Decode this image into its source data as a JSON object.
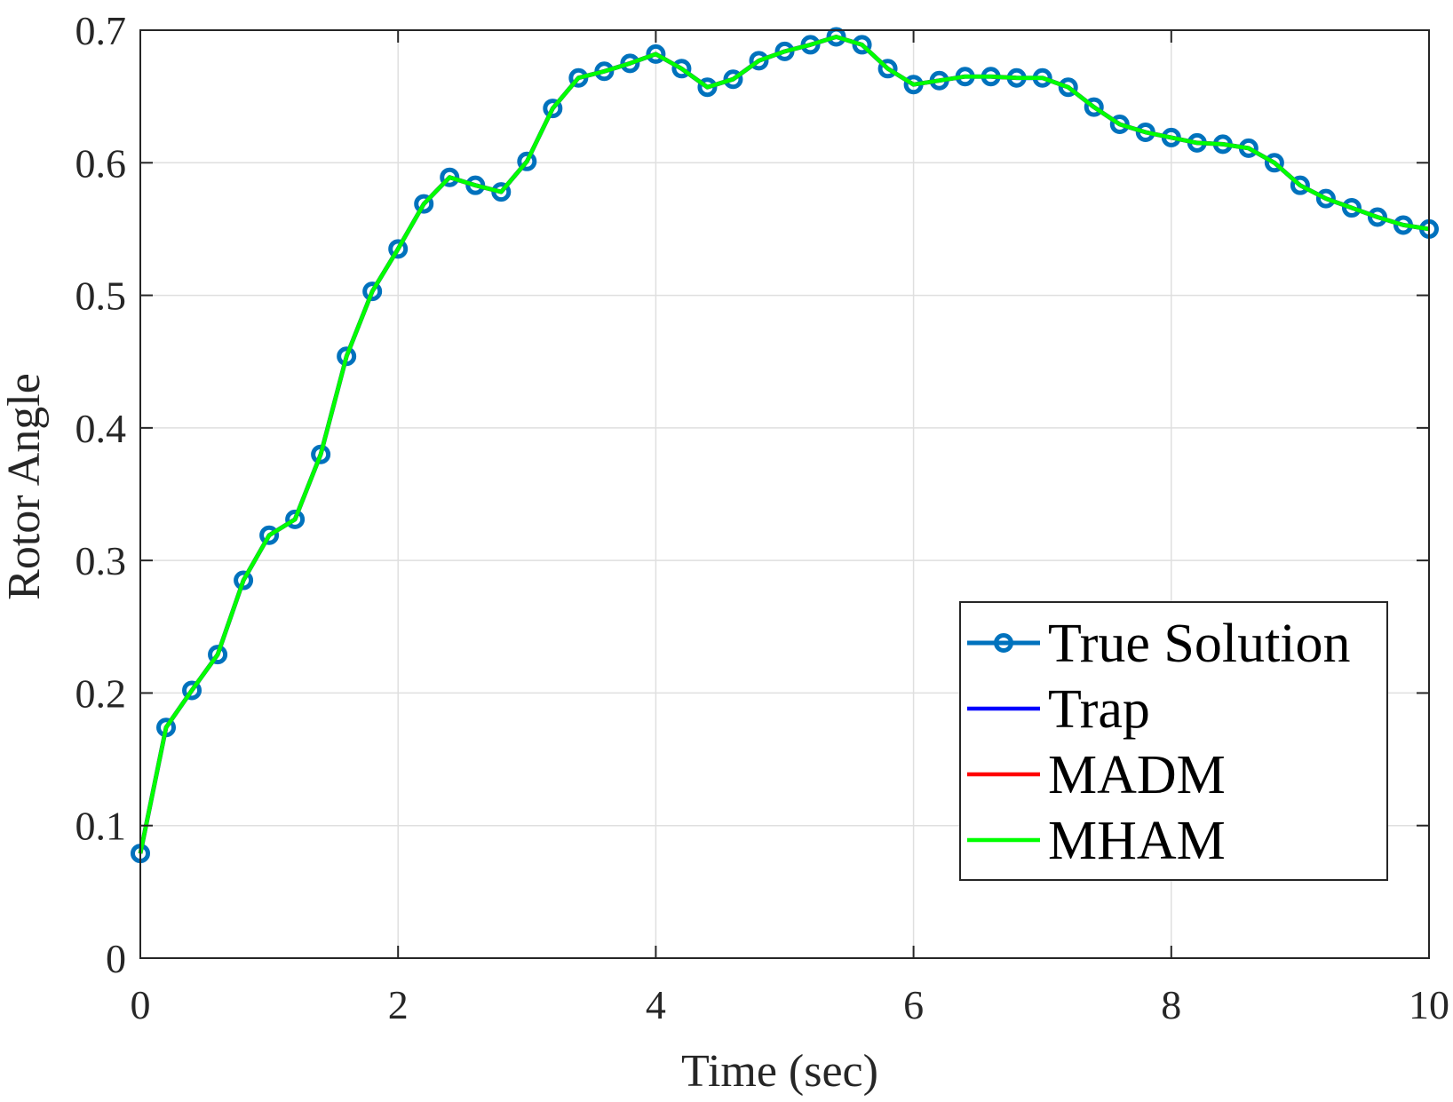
{
  "chart_data": {
    "type": "line",
    "xlabel": "Time (sec)",
    "ylabel": "Rotor Angle",
    "xlim": [
      0,
      10
    ],
    "ylim": [
      0,
      0.7
    ],
    "xticks": [
      "0",
      "2",
      "4",
      "6",
      "8",
      "10"
    ],
    "yticks": [
      "0",
      "0.1",
      "0.2",
      "0.3",
      "0.4",
      "0.5",
      "0.6",
      "0.7"
    ],
    "grid": true,
    "legend_position": "bottom-right",
    "x": [
      0,
      0.2,
      0.4,
      0.6,
      0.8,
      1.0,
      1.2,
      1.4,
      1.6,
      1.8,
      2.0,
      2.2,
      2.4,
      2.6,
      2.8,
      3.0,
      3.2,
      3.4,
      3.6,
      3.8,
      4.0,
      4.2,
      4.4,
      4.6,
      4.8,
      5.0,
      5.2,
      5.4,
      5.6,
      5.8,
      6.0,
      6.2,
      6.4,
      6.6,
      6.8,
      7.0,
      7.2,
      7.4,
      7.6,
      7.8,
      8.0,
      8.2,
      8.4,
      8.6,
      8.8,
      9.0,
      9.2,
      9.4,
      9.6,
      9.8,
      10.0
    ],
    "series": [
      {
        "name": "True Solution",
        "color": "#0072BD",
        "marker": "circle",
        "values": [
          0.079,
          0.174,
          0.202,
          0.229,
          0.285,
          0.319,
          0.331,
          0.38,
          0.454,
          0.503,
          0.535,
          0.569,
          0.589,
          0.583,
          0.578,
          0.601,
          0.641,
          0.664,
          0.669,
          0.675,
          0.682,
          0.671,
          0.657,
          0.663,
          0.677,
          0.684,
          0.689,
          0.695,
          0.689,
          0.671,
          0.659,
          0.662,
          0.665,
          0.665,
          0.664,
          0.664,
          0.657,
          0.642,
          0.629,
          0.623,
          0.619,
          0.615,
          0.614,
          0.611,
          0.6,
          0.583,
          0.573,
          0.566,
          0.559,
          0.553,
          0.55
        ]
      },
      {
        "name": "Trap",
        "color": "#0000FF",
        "marker": "none",
        "values": [
          0.079,
          0.174,
          0.202,
          0.229,
          0.285,
          0.319,
          0.331,
          0.38,
          0.454,
          0.503,
          0.535,
          0.569,
          0.589,
          0.583,
          0.578,
          0.601,
          0.641,
          0.664,
          0.669,
          0.675,
          0.682,
          0.671,
          0.657,
          0.663,
          0.677,
          0.684,
          0.689,
          0.695,
          0.689,
          0.671,
          0.659,
          0.662,
          0.665,
          0.665,
          0.664,
          0.664,
          0.657,
          0.642,
          0.629,
          0.623,
          0.619,
          0.615,
          0.614,
          0.611,
          0.6,
          0.583,
          0.573,
          0.566,
          0.559,
          0.553,
          0.55
        ]
      },
      {
        "name": "MADM",
        "color": "#FF0000",
        "marker": "none",
        "values": [
          0.079,
          0.174,
          0.202,
          0.229,
          0.285,
          0.319,
          0.331,
          0.38,
          0.454,
          0.503,
          0.535,
          0.569,
          0.589,
          0.583,
          0.578,
          0.601,
          0.641,
          0.664,
          0.669,
          0.675,
          0.682,
          0.671,
          0.657,
          0.663,
          0.677,
          0.684,
          0.689,
          0.695,
          0.689,
          0.671,
          0.659,
          0.662,
          0.665,
          0.665,
          0.664,
          0.664,
          0.657,
          0.642,
          0.629,
          0.623,
          0.619,
          0.615,
          0.614,
          0.611,
          0.6,
          0.583,
          0.573,
          0.566,
          0.559,
          0.553,
          0.55
        ]
      },
      {
        "name": "MHAM",
        "color": "#00FF00",
        "marker": "none",
        "values": [
          0.079,
          0.174,
          0.202,
          0.229,
          0.285,
          0.319,
          0.331,
          0.38,
          0.454,
          0.503,
          0.535,
          0.569,
          0.589,
          0.583,
          0.578,
          0.601,
          0.641,
          0.664,
          0.669,
          0.675,
          0.682,
          0.671,
          0.657,
          0.663,
          0.677,
          0.684,
          0.689,
          0.695,
          0.689,
          0.671,
          0.659,
          0.662,
          0.665,
          0.665,
          0.664,
          0.664,
          0.657,
          0.642,
          0.629,
          0.623,
          0.619,
          0.615,
          0.614,
          0.611,
          0.6,
          0.583,
          0.573,
          0.566,
          0.559,
          0.553,
          0.55
        ]
      }
    ]
  }
}
